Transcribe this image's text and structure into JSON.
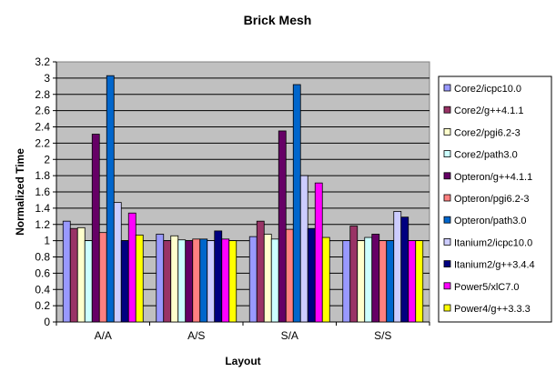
{
  "chart_data": {
    "type": "bar",
    "title": "Brick Mesh",
    "xlabel": "Layout",
    "ylabel": "Normalized Time",
    "ylim": [
      0,
      3.2
    ],
    "ytick_step": 0.2,
    "yticks": [
      "0",
      "0.2",
      "0.4",
      "0.6",
      "0.8",
      "1",
      "1.2",
      "1.4",
      "1.6",
      "1.8",
      "2",
      "2.2",
      "2.4",
      "2.6",
      "2.8",
      "3",
      "3.2"
    ],
    "grid": true,
    "legend_position": "right",
    "categories": [
      "A/A",
      "A/S",
      "S/A",
      "S/S"
    ],
    "series": [
      {
        "name": "Core2/icpc10.0",
        "color": "#9999FF",
        "values": [
          1.24,
          1.08,
          1.05,
          1.0
        ]
      },
      {
        "name": "Core2/g++4.1.1",
        "color": "#993366",
        "values": [
          1.15,
          1.0,
          1.24,
          1.18
        ]
      },
      {
        "name": "Core2/pgi6.2-3",
        "color": "#FFFFCC",
        "values": [
          1.16,
          1.06,
          1.08,
          1.0
        ]
      },
      {
        "name": "Core2/path3.0",
        "color": "#CCFFFF",
        "values": [
          1.0,
          1.01,
          1.02,
          1.04
        ]
      },
      {
        "name": "Opteron/g++4.1.1",
        "color": "#660066",
        "values": [
          2.31,
          1.0,
          2.35,
          1.08
        ]
      },
      {
        "name": "Opteron/pgi6.2-3",
        "color": "#FF8080",
        "values": [
          1.1,
          1.02,
          1.14,
          1.0
        ]
      },
      {
        "name": "Opteron/path3.0",
        "color": "#0066CC",
        "values": [
          3.03,
          1.02,
          2.92,
          1.0
        ]
      },
      {
        "name": "Itanium2/icpc10.0",
        "color": "#CCCCFF",
        "values": [
          1.47,
          1.0,
          1.8,
          1.36
        ]
      },
      {
        "name": "Itanium2/g++3.4.4",
        "color": "#000080",
        "values": [
          1.0,
          1.12,
          1.15,
          1.29
        ]
      },
      {
        "name": "Power5/xlC7.0",
        "color": "#FF00FF",
        "values": [
          1.34,
          1.02,
          1.71,
          1.0
        ]
      },
      {
        "name": "Power4/g++3.3.3",
        "color": "#FFFF00",
        "values": [
          1.07,
          1.0,
          1.04,
          1.0
        ]
      }
    ]
  }
}
